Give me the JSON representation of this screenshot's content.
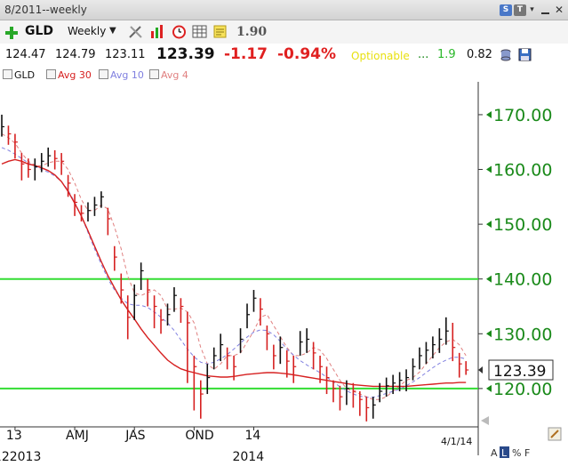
{
  "window": {
    "title": "8/2011--weekly"
  },
  "titlebar_buttons": [
    "S",
    "T",
    "▾"
  ],
  "toolbar": {
    "symbol": "GLD",
    "period": "Weekly",
    "value": "1.90"
  },
  "quote": {
    "open": "124.47",
    "high": "124.79",
    "low": "123.11",
    "last": "123.39",
    "change": "-1.17",
    "change_pct": "-0.94%",
    "optionable": "Optionable",
    "ellipsis": "...",
    "val1": "1.9",
    "val2": "0.82"
  },
  "legend": {
    "symbol": "GLD",
    "avg30": "Avg 30",
    "avg10": "Avg 10",
    "avg4": "Avg 4"
  },
  "colors": {
    "up": "#111111",
    "down": "#d62020",
    "avg30": "#d62020",
    "avg10": "#8080e0",
    "avg4": "#e08080",
    "hline": "#33dd33",
    "axis": "#1a8a1a"
  },
  "chart_data": {
    "type": "ohlc",
    "ylim": [
      113,
      176
    ],
    "y_ticks": [
      120,
      130,
      140,
      150,
      160,
      170
    ],
    "y_tick_labels": [
      "120.00",
      "130.00",
      "140.00",
      "150.00",
      "160.00",
      "170.00"
    ],
    "horizontal_lines": [
      140,
      120
    ],
    "last_price_label": "123.39",
    "last_price": 123.39,
    "x_labels": [
      {
        "week": 2,
        "top": "13",
        "bottom": "122013"
      },
      {
        "week": 11,
        "top": "AMJ",
        "bottom": ""
      },
      {
        "week": 20,
        "top": "JAS",
        "bottom": ""
      },
      {
        "week": 29,
        "top": "OND",
        "bottom": ""
      },
      {
        "week": 38,
        "top": "14",
        "bottom": "2014"
      }
    ],
    "date_label": "4/1/14",
    "bottom_right": [
      "A",
      "L",
      "%",
      "F"
    ],
    "close": [
      167.8,
      166.5,
      165.0,
      161.0,
      160.0,
      160.5,
      161.5,
      162.5,
      162.0,
      161.5,
      157.5,
      154.0,
      152.0,
      152.5,
      153.5,
      155.0,
      151.0,
      144.0,
      138.0,
      133.0,
      137.0,
      141.5,
      138.0,
      135.0,
      132.5,
      133.5,
      137.0,
      135.0,
      132.0,
      124.0,
      119.0,
      122.0,
      126.0,
      128.0,
      126.0,
      124.0,
      129.0,
      133.5,
      136.5,
      134.5,
      130.0,
      126.0,
      127.5,
      125.0,
      124.0,
      128.5,
      129.0,
      126.5,
      124.0,
      122.0,
      120.0,
      118.5,
      120.0,
      119.5,
      118.0,
      116.5,
      117.0,
      119.5,
      120.5,
      121.0,
      121.5,
      122.0,
      124.0,
      126.0,
      127.0,
      128.0,
      129.0,
      130.5,
      127.5,
      124.5,
      123.39
    ],
    "high": [
      170.0,
      168.0,
      166.5,
      163.0,
      162.0,
      162.0,
      163.0,
      164.0,
      163.5,
      163.0,
      159.0,
      155.5,
      153.5,
      154.0,
      155.0,
      156.0,
      153.0,
      146.0,
      141.0,
      137.0,
      139.0,
      143.0,
      140.0,
      137.0,
      134.5,
      135.5,
      138.5,
      136.5,
      134.0,
      126.0,
      121.5,
      124.5,
      127.5,
      130.0,
      127.5,
      126.0,
      131.0,
      135.5,
      138.0,
      136.5,
      131.5,
      128.0,
      129.5,
      127.0,
      126.0,
      130.5,
      131.0,
      128.5,
      126.0,
      124.0,
      121.5,
      120.5,
      121.5,
      121.0,
      119.5,
      118.5,
      118.5,
      121.0,
      122.0,
      122.5,
      123.0,
      123.5,
      125.5,
      127.5,
      128.5,
      129.5,
      131.0,
      133.0,
      132.0,
      126.5,
      125.0
    ],
    "low": [
      166.0,
      164.5,
      162.0,
      158.0,
      158.5,
      158.0,
      159.5,
      160.5,
      160.0,
      159.0,
      155.0,
      151.5,
      150.5,
      150.5,
      151.5,
      153.0,
      148.0,
      141.5,
      135.5,
      129.0,
      132.5,
      138.0,
      135.0,
      131.0,
      130.0,
      131.5,
      134.0,
      132.0,
      121.0,
      116.0,
      114.5,
      119.0,
      123.5,
      125.0,
      123.5,
      121.5,
      126.5,
      131.0,
      134.0,
      131.5,
      127.0,
      123.5,
      124.5,
      122.0,
      121.0,
      126.0,
      126.5,
      123.5,
      121.0,
      119.0,
      117.5,
      116.0,
      117.0,
      116.5,
      115.0,
      114.0,
      114.5,
      117.5,
      118.5,
      119.0,
      119.5,
      119.5,
      121.5,
      123.5,
      124.5,
      125.5,
      126.5,
      128.0,
      125.0,
      122.0,
      122.5
    ],
    "avg30": [
      161.0,
      161.5,
      161.8,
      161.5,
      161.0,
      160.7,
      160.3,
      159.8,
      159.0,
      157.8,
      156.0,
      153.8,
      151.5,
      148.8,
      146.0,
      143.2,
      140.6,
      138.4,
      136.2,
      134.4,
      132.7,
      130.9,
      129.3,
      127.9,
      126.5,
      125.2,
      124.3,
      123.6,
      123.2,
      122.9,
      122.6,
      122.3,
      122.2,
      122.1,
      122.1,
      122.2,
      122.4,
      122.6,
      122.7,
      122.8,
      122.9,
      122.9,
      122.8,
      122.7,
      122.5,
      122.3,
      122.1,
      121.9,
      121.7,
      121.5,
      121.3,
      121.1,
      120.9,
      120.7,
      120.6,
      120.5,
      120.4,
      120.4,
      120.4,
      120.4,
      120.4,
      120.4,
      120.5,
      120.6,
      120.7,
      120.8,
      120.9,
      121.0,
      121.0,
      121.1,
      121.1
    ],
    "avg10": [
      164.0,
      163.5,
      162.8,
      162.0,
      161.2,
      160.5,
      160.0,
      159.5,
      158.8,
      157.8,
      156.2,
      154.0,
      151.5,
      148.5,
      145.5,
      142.7,
      140.0,
      138.0,
      136.5,
      135.5,
      135.2,
      135.2,
      134.8,
      134.0,
      133.0,
      132.0,
      130.6,
      128.9,
      127.2,
      125.8,
      124.8,
      124.5,
      124.8,
      125.4,
      126.2,
      127.2,
      128.3,
      129.4,
      130.3,
      130.7,
      130.6,
      129.8,
      128.6,
      127.2,
      126.1,
      125.1,
      124.3,
      123.6,
      122.9,
      122.1,
      121.2,
      120.3,
      119.6,
      119.0,
      118.6,
      118.4,
      118.4,
      118.7,
      119.1,
      119.5,
      119.9,
      120.5,
      121.2,
      122.0,
      122.9,
      123.8,
      124.6,
      125.2,
      125.7,
      125.7,
      125.4
    ],
    "avg4": [
      166.5,
      165.8,
      164.8,
      163.0,
      161.5,
      160.8,
      160.6,
      161.2,
      161.5,
      161.5,
      160.0,
      157.5,
      154.5,
      152.5,
      152.5,
      153.5,
      152.8,
      149.5,
      145.5,
      140.5,
      137.5,
      137.0,
      137.5,
      138.0,
      137.0,
      134.5,
      134.5,
      134.7,
      134.0,
      132.0,
      127.5,
      124.5,
      123.5,
      124.5,
      126.0,
      126.0,
      126.5,
      128.5,
      130.5,
      133.0,
      133.5,
      131.5,
      129.5,
      127.5,
      126.0,
      126.0,
      126.5,
      127.5,
      127.0,
      125.5,
      123.5,
      121.5,
      120.0,
      119.5,
      119.0,
      118.5,
      118.0,
      118.0,
      118.5,
      119.5,
      120.5,
      121.5,
      122.0,
      123.0,
      124.5,
      126.0,
      127.5,
      128.5,
      129.0,
      128.0,
      126.0
    ]
  }
}
